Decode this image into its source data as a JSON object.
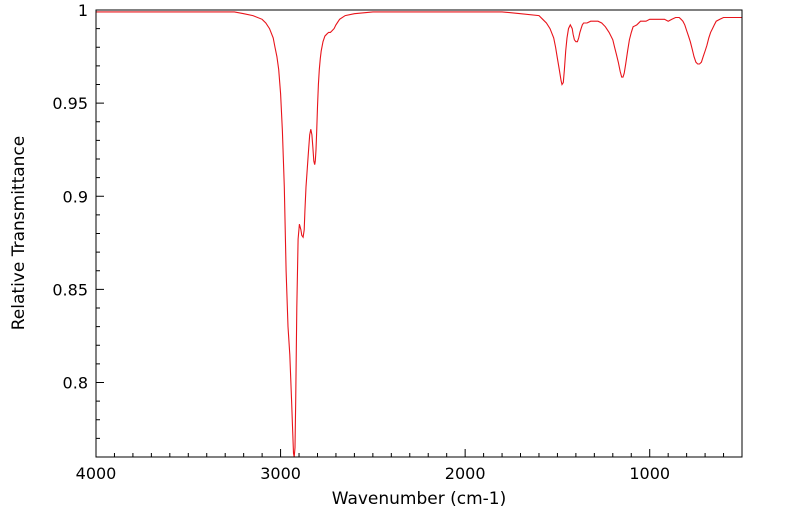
{
  "chart_data": {
    "type": "line",
    "title": "",
    "xlabel": "Wavenumber (cm-1)",
    "ylabel": "Relative Transmittance",
    "xlim": [
      4000,
      500
    ],
    "ylim": [
      0.76,
      1.0
    ],
    "x_reversed": true,
    "grid": false,
    "legend": "none",
    "x_ticks": [
      {
        "value": 4000,
        "label": "4000"
      },
      {
        "value": 3000,
        "label": "3000"
      },
      {
        "value": 2000,
        "label": "2000"
      },
      {
        "value": 1000,
        "label": "1000"
      }
    ],
    "y_ticks": [
      {
        "value": 1.0,
        "label": "1"
      },
      {
        "value": 0.95,
        "label": "0.95"
      },
      {
        "value": 0.9,
        "label": "0.9"
      },
      {
        "value": 0.85,
        "label": "0.85"
      },
      {
        "value": 0.8,
        "label": "0.8"
      }
    ],
    "series": [
      {
        "color": "#e8141b",
        "x": [
          4000,
          3500,
          3300,
          3250,
          3200,
          3150,
          3100,
          3080,
          3060,
          3040,
          3030,
          3020,
          3010,
          3000,
          2990,
          2980,
          2970,
          2960,
          2950,
          2940,
          2935,
          2930,
          2926,
          2922,
          2918,
          2912,
          2905,
          2898,
          2890,
          2885,
          2878,
          2872,
          2868,
          2862,
          2855,
          2848,
          2842,
          2836,
          2830,
          2825,
          2820,
          2815,
          2812,
          2808,
          2804,
          2800,
          2795,
          2790,
          2785,
          2780,
          2770,
          2760,
          2750,
          2740,
          2730,
          2720,
          2710,
          2700,
          2680,
          2650,
          2600,
          2500,
          2400,
          2300,
          2200,
          2100,
          2000,
          1900,
          1800,
          1700,
          1600,
          1580,
          1560,
          1540,
          1520,
          1510,
          1500,
          1490,
          1480,
          1475,
          1468,
          1462,
          1455,
          1448,
          1440,
          1430,
          1420,
          1415,
          1408,
          1400,
          1392,
          1385,
          1378,
          1372,
          1365,
          1358,
          1350,
          1340,
          1320,
          1300,
          1280,
          1260,
          1240,
          1220,
          1200,
          1190,
          1180,
          1170,
          1160,
          1152,
          1145,
          1138,
          1130,
          1120,
          1110,
          1100,
          1090,
          1070,
          1050,
          1020,
          1000,
          980,
          950,
          920,
          900,
          880,
          860,
          850,
          840,
          830,
          820,
          810,
          800,
          790,
          780,
          770,
          760,
          750,
          740,
          730,
          720,
          710,
          700,
          690,
          680,
          670,
          660,
          650,
          640,
          620,
          600,
          580,
          560,
          540,
          520,
          500
        ],
        "y": [
          0.999,
          0.999,
          0.999,
          0.999,
          0.998,
          0.997,
          0.995,
          0.993,
          0.99,
          0.985,
          0.98,
          0.975,
          0.968,
          0.955,
          0.935,
          0.905,
          0.86,
          0.83,
          0.815,
          0.79,
          0.775,
          0.762,
          0.76,
          0.765,
          0.79,
          0.84,
          0.877,
          0.885,
          0.882,
          0.879,
          0.878,
          0.882,
          0.892,
          0.905,
          0.915,
          0.925,
          0.933,
          0.936,
          0.933,
          0.926,
          0.919,
          0.917,
          0.919,
          0.925,
          0.935,
          0.948,
          0.96,
          0.968,
          0.974,
          0.978,
          0.983,
          0.986,
          0.987,
          0.988,
          0.988,
          0.989,
          0.99,
          0.992,
          0.995,
          0.997,
          0.998,
          0.999,
          0.999,
          0.999,
          0.999,
          0.999,
          0.999,
          0.999,
          0.999,
          0.998,
          0.997,
          0.995,
          0.993,
          0.99,
          0.985,
          0.98,
          0.974,
          0.968,
          0.962,
          0.96,
          0.961,
          0.968,
          0.978,
          0.985,
          0.99,
          0.992,
          0.99,
          0.987,
          0.984,
          0.983,
          0.983,
          0.985,
          0.988,
          0.99,
          0.992,
          0.993,
          0.993,
          0.993,
          0.994,
          0.994,
          0.994,
          0.993,
          0.991,
          0.988,
          0.984,
          0.98,
          0.976,
          0.972,
          0.967,
          0.964,
          0.964,
          0.966,
          0.971,
          0.978,
          0.984,
          0.988,
          0.991,
          0.992,
          0.994,
          0.994,
          0.995,
          0.995,
          0.995,
          0.995,
          0.994,
          0.995,
          0.996,
          0.996,
          0.996,
          0.995,
          0.994,
          0.992,
          0.989,
          0.986,
          0.983,
          0.979,
          0.975,
          0.972,
          0.971,
          0.971,
          0.972,
          0.975,
          0.978,
          0.981,
          0.985,
          0.988,
          0.99,
          0.992,
          0.994,
          0.995,
          0.996,
          0.996,
          0.996,
          0.996,
          0.996,
          0.996
        ]
      }
    ]
  }
}
